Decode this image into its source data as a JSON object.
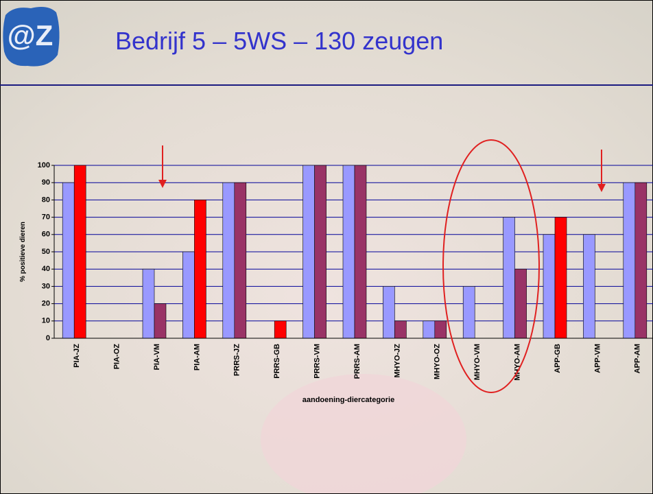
{
  "logo_text": "@Z",
  "chart_data": {
    "type": "bar",
    "title": "Bedrijf 5 – 5WS – 130 zeugen",
    "y_label": "% positieve dieren",
    "x_label": "aandoening-diercategorie",
    "categories": [
      "PIA-JZ",
      "PIA-OZ",
      "PIA-VM",
      "PIA-AM",
      "PRRS-JZ",
      "PRRS-GB",
      "PRRS-VM",
      "PRRS-AM",
      "MHYO-JZ",
      "MHYO-OZ",
      "MHYO-VM",
      "MHYO-AM",
      "APP-GB",
      "APP-VM",
      "APP-AM"
    ],
    "series": [
      {
        "color": "#9999ff",
        "values": [
          90,
          null,
          40,
          50,
          90,
          null,
          100,
          100,
          30,
          10,
          30,
          70,
          60,
          60,
          90
        ]
      },
      {
        "colors": [
          "#ff0000",
          "#993366",
          "#993366",
          "#ff0000",
          "#993366",
          "#ff0000",
          "#993366",
          "#993366",
          "#993366",
          "#993366",
          "#993366",
          "#993366",
          "#ff0000",
          "#993366",
          "#993366"
        ],
        "values": [
          100,
          null,
          20,
          80,
          90,
          10,
          100,
          100,
          10,
          10,
          null,
          40,
          70,
          null,
          90
        ]
      }
    ],
    "ylim": [
      0,
      100
    ],
    "yticks": [
      0,
      10,
      20,
      30,
      40,
      50,
      60,
      70,
      80,
      90,
      100
    ],
    "grid": true,
    "grid_color": "#000099"
  }
}
